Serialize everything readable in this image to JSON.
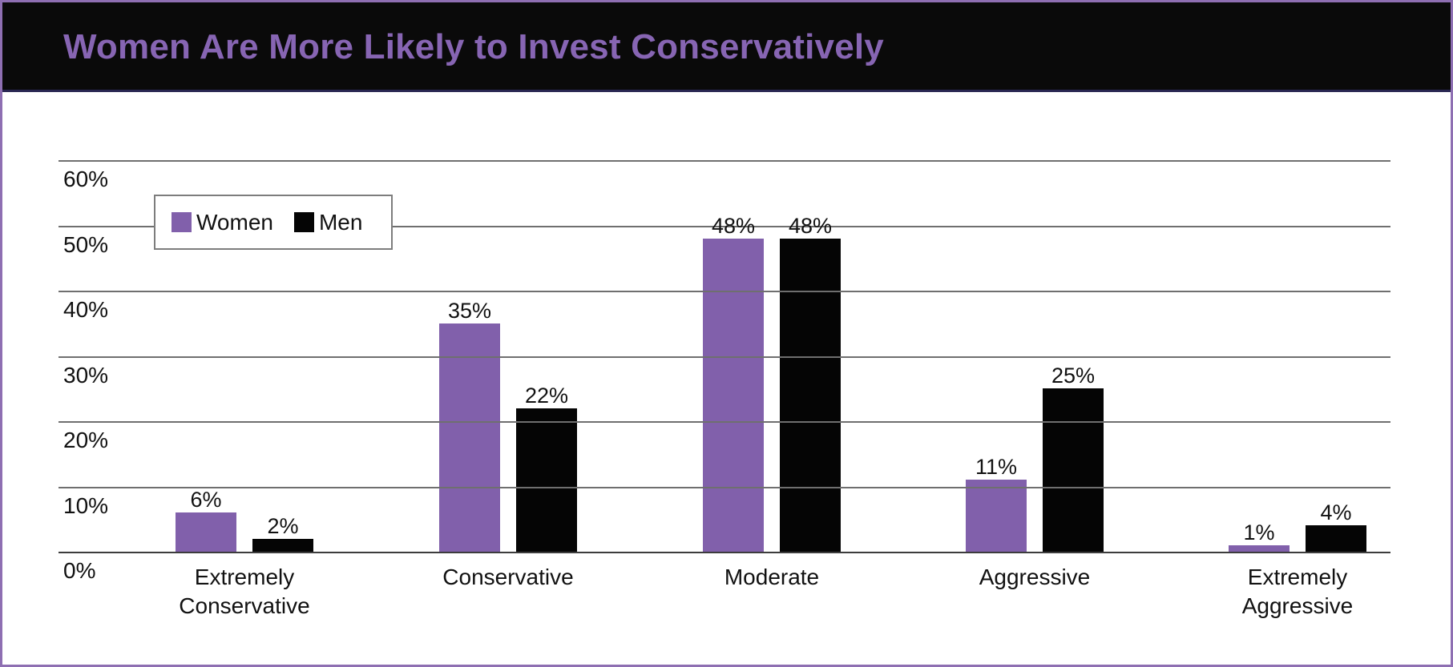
{
  "header": {
    "title": "Women Are More Likely to Invest Conservatively"
  },
  "legend": {
    "items": [
      {
        "label": "Women",
        "color": "#8160AB"
      },
      {
        "label": "Men",
        "color": "#050505"
      }
    ]
  },
  "chart_data": {
    "type": "bar",
    "title": "Women Are More Likely to Invest Conservatively",
    "categories": [
      "Extremely Conservative",
      "Conservative",
      "Moderate",
      "Aggressive",
      "Extremely Aggressive"
    ],
    "series": [
      {
        "name": "Women",
        "color": "#8160AB",
        "values": [
          6,
          35,
          48,
          11,
          1
        ]
      },
      {
        "name": "Men",
        "color": "#050505",
        "values": [
          2,
          22,
          48,
          25,
          4
        ]
      }
    ],
    "value_suffix": "%",
    "xlabel": "",
    "ylabel": "",
    "ylim": [
      0,
      60
    ],
    "yticks": [
      0,
      10,
      20,
      30,
      40,
      50,
      60
    ],
    "ytick_labels": [
      "0%",
      "10%",
      "20%",
      "30%",
      "40%",
      "50%",
      "60%"
    ],
    "grid": true,
    "gridlines_above_bars": true,
    "legend_position": "top-left"
  },
  "colors": {
    "frame_border": "#8E6FB2",
    "header_bg": "#0A0A0A",
    "header_divider": "#2A2753",
    "title": "#8765B3",
    "grid": "#6F6F6F",
    "axis": "#3D3D3D"
  }
}
